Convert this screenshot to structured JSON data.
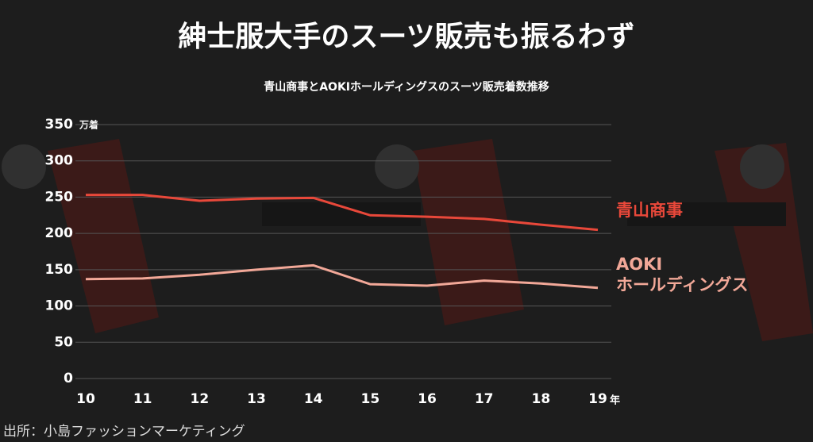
{
  "chart_data": {
    "type": "line",
    "title": "紳士服大手のスーツ販売も振るわず",
    "subtitle": "青山商事とAOKIホールディングスのスーツ販売着数推移",
    "y_unit": "万着",
    "x_unit": "年",
    "categories": [
      "10",
      "11",
      "12",
      "13",
      "14",
      "15",
      "16",
      "17",
      "18",
      "19"
    ],
    "series": [
      {
        "name": "青山商事",
        "color": "#e8483a",
        "values": [
          253,
          253,
          245,
          248,
          249,
          225,
          223,
          220,
          212,
          205
        ]
      },
      {
        "name": "AOKI\nホールディングス",
        "color": "#f2a898",
        "values": [
          137,
          138,
          143,
          150,
          156,
          130,
          128,
          135,
          131,
          125
        ]
      }
    ],
    "ylim": [
      0,
      350
    ],
    "yticks": [
      0,
      50,
      100,
      150,
      200,
      250,
      300,
      350
    ],
    "grid": true,
    "source": "出所：小島ファッションマーケティング"
  }
}
